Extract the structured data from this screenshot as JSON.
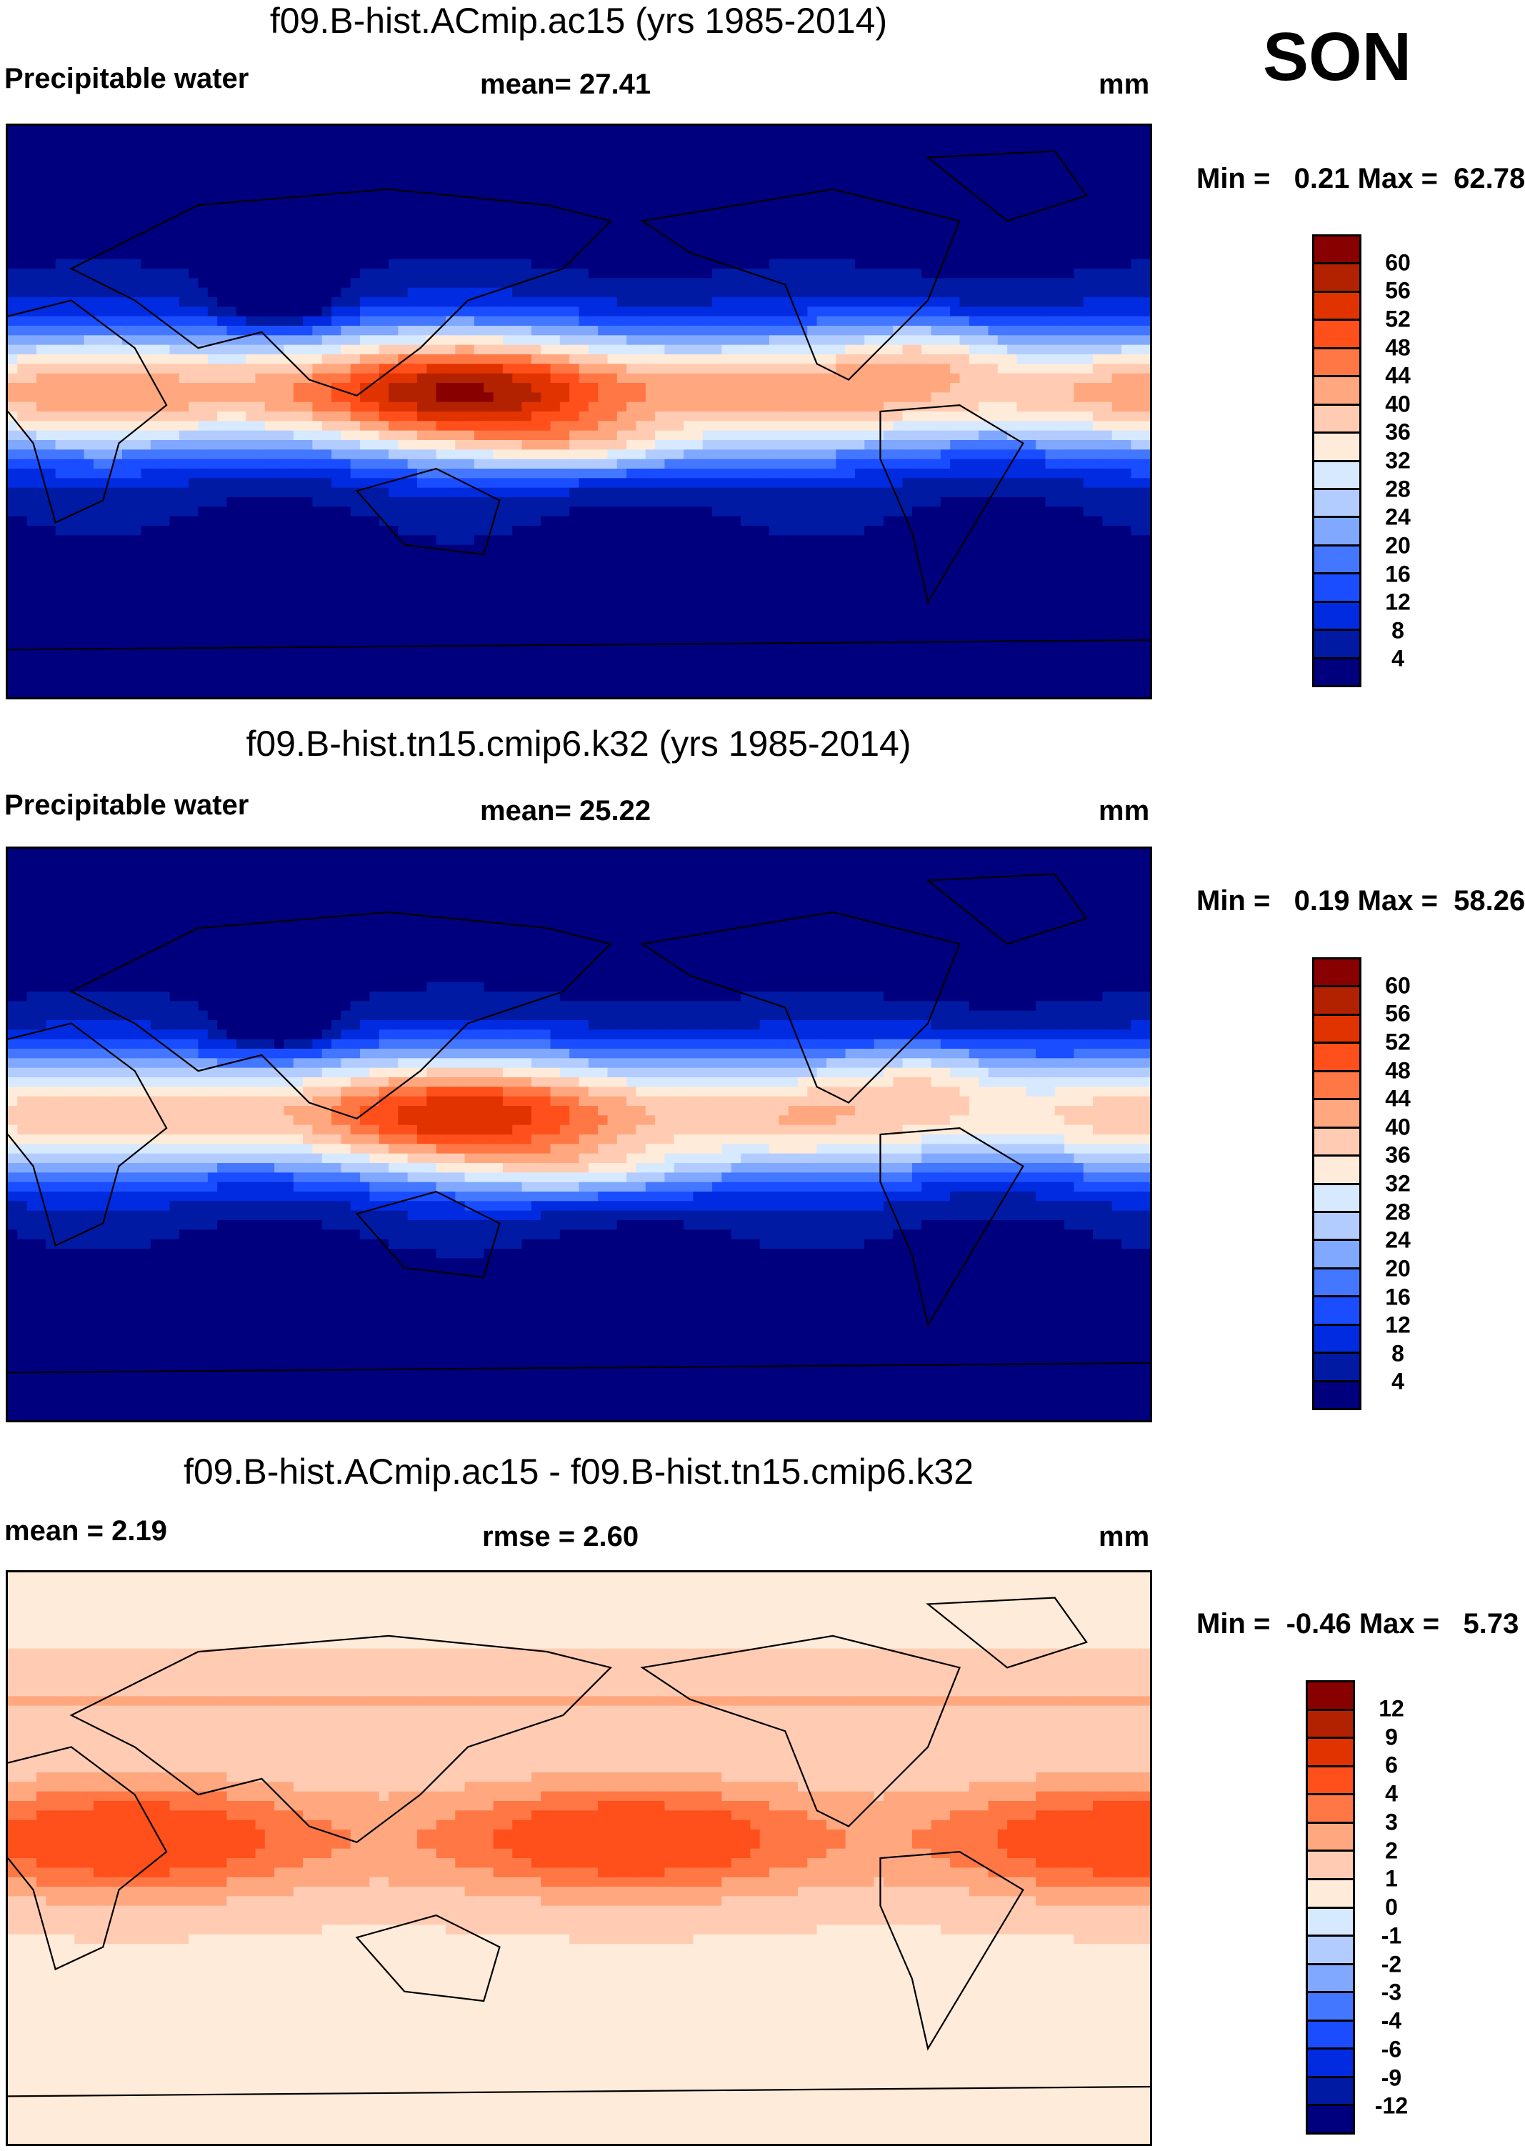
{
  "season": "SON",
  "units": "mm",
  "colors": [
    "#00007f",
    "#001aa4",
    "#002be0",
    "#1a4dff",
    "#4477ff",
    "#80a8ff",
    "#b3ccff",
    "#d6e9ff",
    "#ffebd9",
    "#ffccb3",
    "#ffa880",
    "#ff7744",
    "#ff4f1a",
    "#e03300",
    "#b32200",
    "#880000"
  ],
  "panels": [
    {
      "title": "f09.B-hist.ACmip.ac15 (yrs 1985-2014)",
      "left_label": "Precipitable water",
      "center_label": "mean=  27.41",
      "right_label": "mm",
      "minmax": "Min =   0.21 Max =  62.78",
      "levels": [
        "60",
        "56",
        "52",
        "48",
        "44",
        "40",
        "36",
        "32",
        "28",
        "24",
        "20",
        "16",
        "12",
        "8",
        "4"
      ]
    },
    {
      "title": "f09.B-hist.tn15.cmip6.k32 (yrs 1985-2014)",
      "left_label": "Precipitable water",
      "center_label": "mean=  25.22",
      "right_label": "mm",
      "minmax": "Min =   0.19 Max =  58.26",
      "levels": [
        "60",
        "56",
        "52",
        "48",
        "44",
        "40",
        "36",
        "32",
        "28",
        "24",
        "20",
        "16",
        "12",
        "8",
        "4"
      ]
    },
    {
      "title": "f09.B-hist.ACmip.ac15 - f09.B-hist.tn15.cmip6.k32",
      "left_label": "mean =   2.19",
      "center_label": "rmse =   2.60",
      "right_label": "mm",
      "minmax": "Min =  -0.46 Max =   5.73",
      "levels": [
        "12",
        "9",
        "6",
        "4",
        "3",
        "2",
        "1",
        "0",
        "-1",
        "-2",
        "-3",
        "-4",
        "-6",
        "-9",
        "-12"
      ]
    }
  ]
}
